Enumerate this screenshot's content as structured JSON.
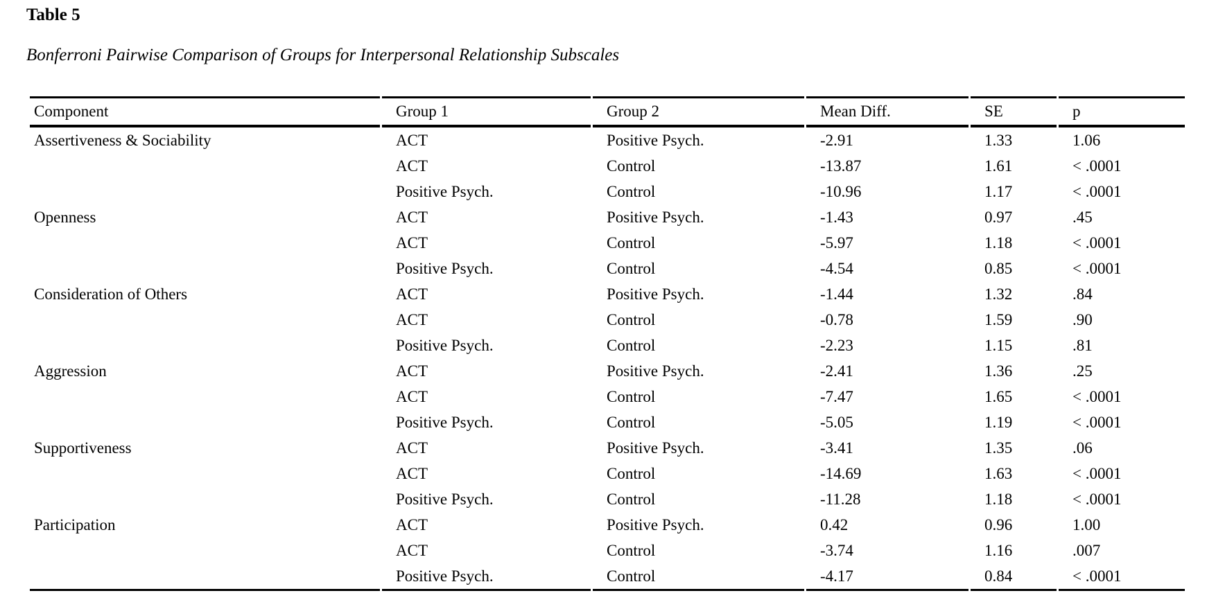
{
  "document": {
    "table_number": "Table 5",
    "table_caption": "Bonferroni Pairwise Comparison of Groups for Interpersonal Relationship Subscales"
  },
  "table": {
    "columns": [
      "Component",
      "Group 1",
      "Group 2",
      "Mean Diff.",
      "SE",
      "p"
    ],
    "rows": [
      [
        "Assertiveness & Sociability",
        "ACT",
        "Positive Psych.",
        "-2.91",
        "1.33",
        "1.06"
      ],
      [
        "",
        "ACT",
        "Control",
        "-13.87",
        "1.61",
        "< .0001"
      ],
      [
        "",
        "Positive Psych.",
        "Control",
        "-10.96",
        "1.17",
        "< .0001"
      ],
      [
        "Openness",
        "ACT",
        "Positive Psych.",
        "-1.43",
        "0.97",
        ".45"
      ],
      [
        "",
        "ACT",
        "Control",
        "-5.97",
        "1.18",
        "< .0001"
      ],
      [
        "",
        "Positive Psych.",
        "Control",
        "-4.54",
        "0.85",
        "< .0001"
      ],
      [
        "Consideration of Others",
        "ACT",
        "Positive Psych.",
        "-1.44",
        "1.32",
        ".84"
      ],
      [
        "",
        "ACT",
        "Control",
        "-0.78",
        "1.59",
        ".90"
      ],
      [
        "",
        "Positive Psych.",
        "Control",
        "-2.23",
        "1.15",
        ".81"
      ],
      [
        "Aggression",
        "ACT",
        "Positive Psych.",
        "-2.41",
        "1.36",
        ".25"
      ],
      [
        "",
        "ACT",
        "Control",
        "-7.47",
        "1.65",
        "< .0001"
      ],
      [
        "",
        "Positive Psych.",
        "Control",
        "-5.05",
        "1.19",
        "< .0001"
      ],
      [
        "Supportiveness",
        "ACT",
        "Positive Psych.",
        "-3.41",
        "1.35",
        ".06"
      ],
      [
        "",
        "ACT",
        "Control",
        "-14.69",
        "1.63",
        "< .0001"
      ],
      [
        "",
        "Positive Psych.",
        "Control",
        "-11.28",
        "1.18",
        "< .0001"
      ],
      [
        "Participation",
        "ACT",
        "Positive Psych.",
        "0.42",
        "0.96",
        "1.00"
      ],
      [
        "",
        "ACT",
        "Control",
        "-3.74",
        "1.16",
        ".007"
      ],
      [
        "",
        "Positive Psych.",
        "Control",
        "-4.17",
        "0.84",
        "< .0001"
      ]
    ]
  },
  "colors": {
    "background": "#ffffff",
    "text": "#000000",
    "rule": "#000000"
  }
}
